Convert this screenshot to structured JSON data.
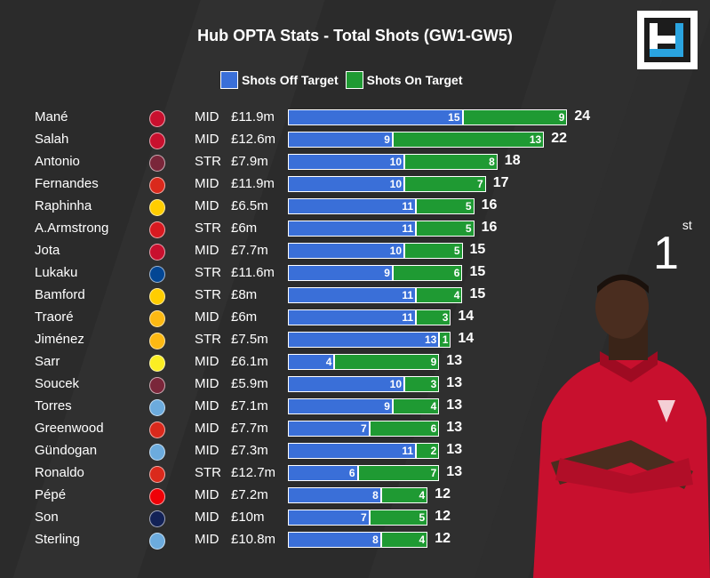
{
  "title": "Hub OPTA Stats - Total Shots (GW1-GW5)",
  "rank": {
    "number": "1",
    "suffix": "st"
  },
  "colors": {
    "off": "#3a6fd8",
    "on": "#1f9a33",
    "background": "#2b2b2b"
  },
  "legend": {
    "off_label": "Shots Off Target",
    "on_label": "Shots On Target"
  },
  "chart_data": {
    "type": "bar",
    "orientation": "horizontal",
    "stacked": true,
    "title": "Hub OPTA Stats - Total Shots (GW1-GW5)",
    "legend_position": "top",
    "categories": [
      "Mané",
      "Salah",
      "Antonio",
      "Fernandes",
      "Raphinha",
      "A.Armstrong",
      "Jota",
      "Lukaku",
      "Bamford",
      "Traoré",
      "Jiménez",
      "Sarr",
      "Soucek",
      "Torres",
      "Greenwood",
      "Gündogan",
      "Ronaldo",
      "Pépé",
      "Son",
      "Sterling"
    ],
    "series": [
      {
        "name": "Shots Off Target",
        "values": [
          15,
          9,
          10,
          10,
          11,
          11,
          10,
          9,
          11,
          11,
          13,
          4,
          10,
          9,
          7,
          11,
          6,
          8,
          7,
          8
        ]
      },
      {
        "name": "Shots On Target",
        "values": [
          9,
          13,
          8,
          7,
          5,
          5,
          5,
          6,
          4,
          3,
          1,
          9,
          3,
          4,
          6,
          2,
          7,
          4,
          5,
          4
        ]
      }
    ],
    "totals": [
      24,
      22,
      18,
      17,
      16,
      16,
      15,
      15,
      15,
      14,
      14,
      13,
      13,
      13,
      13,
      13,
      13,
      12,
      12,
      12
    ],
    "positions": [
      "MID",
      "MID",
      "STR",
      "MID",
      "MID",
      "STR",
      "MID",
      "STR",
      "STR",
      "MID",
      "STR",
      "MID",
      "MID",
      "MID",
      "MID",
      "MID",
      "STR",
      "MID",
      "MID",
      "MID"
    ],
    "prices": [
      "£11.9m",
      "£12.6m",
      "£7.9m",
      "£11.9m",
      "£6.5m",
      "£6m",
      "£7.7m",
      "£11.6m",
      "£8m",
      "£6m",
      "£7.5m",
      "£6.1m",
      "£5.9m",
      "£7.1m",
      "£7.7m",
      "£7.3m",
      "£12.7m",
      "£7.2m",
      "£10m",
      "£10.8m"
    ],
    "club_icons": [
      "liverpool-crest",
      "liverpool-crest",
      "west-ham-crest",
      "man-utd-crest",
      "leeds-crest",
      "southampton-crest",
      "liverpool-crest",
      "chelsea-crest",
      "leeds-crest",
      "wolves-crest",
      "wolves-crest",
      "watford-crest",
      "west-ham-crest",
      "man-city-crest",
      "man-utd-crest",
      "man-city-crest",
      "man-utd-crest",
      "arsenal-crest",
      "tottenham-crest",
      "man-city-crest"
    ],
    "club_colors": [
      "#c8102e",
      "#c8102e",
      "#7a263a",
      "#da291c",
      "#ffcd00",
      "#d71920",
      "#c8102e",
      "#034694",
      "#ffcd00",
      "#fdb913",
      "#fdb913",
      "#fbee23",
      "#7a263a",
      "#6cabdd",
      "#da291c",
      "#6cabdd",
      "#da291c",
      "#ef0107",
      "#132257",
      "#6cabdd"
    ]
  }
}
